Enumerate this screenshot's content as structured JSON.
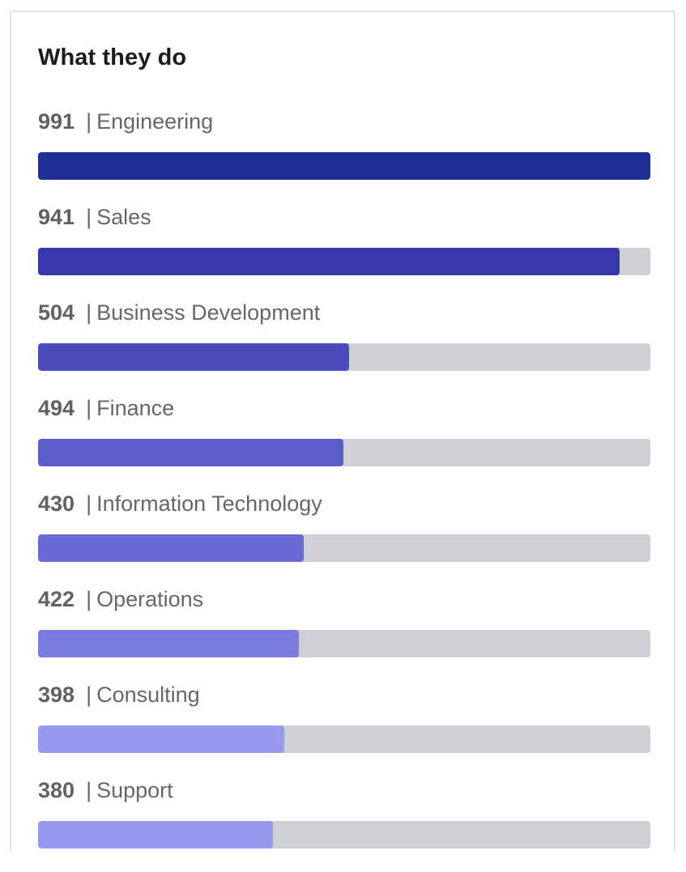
{
  "card": {
    "title": "What they do"
  },
  "chart_data": {
    "type": "bar",
    "orientation": "horizontal",
    "title": "What they do",
    "xlim": [
      0,
      991
    ],
    "separator": "|",
    "categories": [
      "Engineering",
      "Sales",
      "Business Development",
      "Finance",
      "Information Technology",
      "Operations",
      "Consulting",
      "Support"
    ],
    "values": [
      991,
      941,
      504,
      494,
      430,
      422,
      398,
      380
    ],
    "colors": [
      "#1f2d96",
      "#3537ab",
      "#4a4cbd",
      "#5a5dca",
      "#6a6ad6",
      "#7b7ce0",
      "#9699ee",
      "#9699ee"
    ],
    "track_color": "#cfd0d5"
  }
}
